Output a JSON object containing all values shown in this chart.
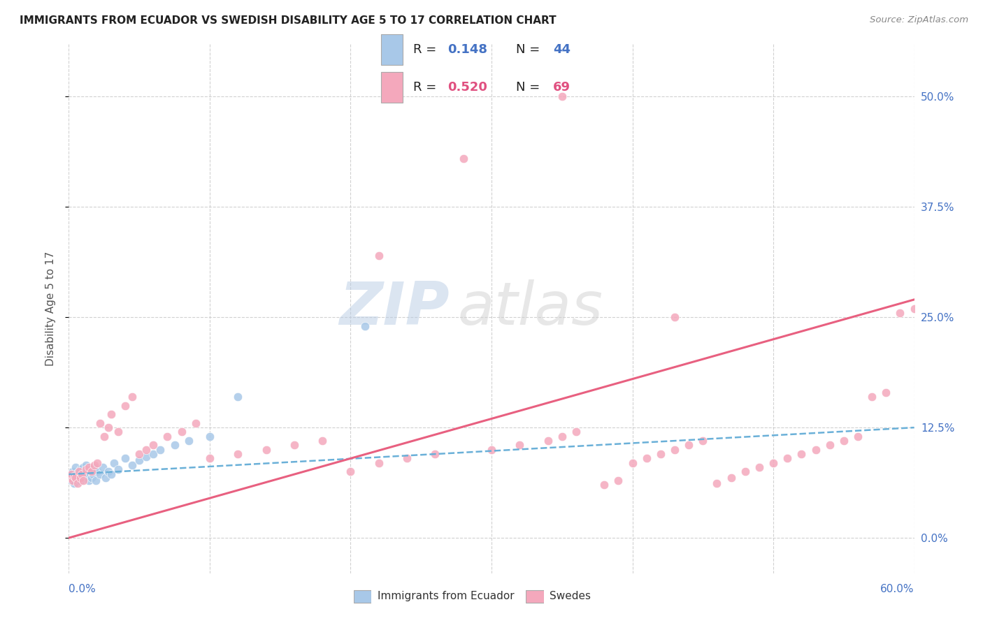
{
  "title": "IMMIGRANTS FROM ECUADOR VS SWEDISH DISABILITY AGE 5 TO 17 CORRELATION CHART",
  "source": "Source: ZipAtlas.com",
  "ylabel": "Disability Age 5 to 17",
  "xlim": [
    0.0,
    0.6
  ],
  "ylim": [
    -0.04,
    0.56
  ],
  "xlabel_vals": [
    0.0,
    0.6
  ],
  "xlabel_labels": [
    "0.0%",
    "60.0%"
  ],
  "ylabel_vals": [
    0.0,
    0.125,
    0.25,
    0.375,
    0.5
  ],
  "ylabel_labels": [
    "0.0%",
    "12.5%",
    "25.0%",
    "37.5%",
    "50.0%"
  ],
  "legend_R1": "R = ",
  "legend_V1": "0.148",
  "legend_N1_label": "N = ",
  "legend_N1": "44",
  "legend_R2": "R = ",
  "legend_V2": "0.520",
  "legend_N2_label": "N = ",
  "legend_N2": "69",
  "legend_label1": "Immigrants from Ecuador",
  "legend_label2": "Swedes",
  "color_blue": "#a8c8e8",
  "color_pink": "#f4a8bc",
  "color_blue_text": "#4472c4",
  "color_pink_text": "#e05080",
  "trendline_blue_color": "#6ab0d8",
  "trendline_pink_color": "#e86080",
  "background_color": "#ffffff",
  "grid_color": "#cccccc",
  "watermark_zip": "ZIP",
  "watermark_atlas": "atlas",
  "ecuador_x": [
    0.001,
    0.002,
    0.002,
    0.003,
    0.003,
    0.004,
    0.004,
    0.005,
    0.005,
    0.006,
    0.007,
    0.008,
    0.008,
    0.009,
    0.01,
    0.01,
    0.011,
    0.012,
    0.013,
    0.014,
    0.015,
    0.016,
    0.017,
    0.018,
    0.019,
    0.02,
    0.022,
    0.024,
    0.026,
    0.028,
    0.03,
    0.032,
    0.035,
    0.04,
    0.045,
    0.05,
    0.055,
    0.06,
    0.065,
    0.075,
    0.085,
    0.1,
    0.12,
    0.21
  ],
  "ecuador_y": [
    0.068,
    0.072,
    0.065,
    0.07,
    0.075,
    0.068,
    0.062,
    0.072,
    0.08,
    0.074,
    0.068,
    0.078,
    0.065,
    0.072,
    0.08,
    0.068,
    0.075,
    0.082,
    0.072,
    0.065,
    0.078,
    0.068,
    0.072,
    0.08,
    0.065,
    0.075,
    0.072,
    0.08,
    0.068,
    0.075,
    0.072,
    0.085,
    0.078,
    0.09,
    0.082,
    0.088,
    0.092,
    0.095,
    0.1,
    0.105,
    0.11,
    0.115,
    0.16,
    0.24
  ],
  "swedes_x": [
    0.001,
    0.002,
    0.003,
    0.004,
    0.005,
    0.006,
    0.007,
    0.008,
    0.009,
    0.01,
    0.012,
    0.014,
    0.016,
    0.018,
    0.02,
    0.022,
    0.025,
    0.028,
    0.03,
    0.035,
    0.04,
    0.045,
    0.05,
    0.055,
    0.06,
    0.07,
    0.08,
    0.09,
    0.1,
    0.12,
    0.14,
    0.16,
    0.18,
    0.2,
    0.22,
    0.24,
    0.26,
    0.28,
    0.3,
    0.32,
    0.34,
    0.35,
    0.36,
    0.38,
    0.39,
    0.4,
    0.41,
    0.42,
    0.43,
    0.44,
    0.45,
    0.46,
    0.47,
    0.48,
    0.49,
    0.5,
    0.51,
    0.52,
    0.53,
    0.54,
    0.55,
    0.56,
    0.57,
    0.58,
    0.59,
    0.35,
    0.22,
    0.43,
    0.6
  ],
  "swedes_y": [
    0.068,
    0.072,
    0.065,
    0.07,
    0.068,
    0.062,
    0.075,
    0.068,
    0.072,
    0.065,
    0.078,
    0.08,
    0.075,
    0.082,
    0.085,
    0.13,
    0.115,
    0.125,
    0.14,
    0.12,
    0.15,
    0.16,
    0.095,
    0.1,
    0.105,
    0.115,
    0.12,
    0.13,
    0.09,
    0.095,
    0.1,
    0.105,
    0.11,
    0.075,
    0.085,
    0.09,
    0.095,
    0.43,
    0.1,
    0.105,
    0.11,
    0.115,
    0.12,
    0.06,
    0.065,
    0.085,
    0.09,
    0.095,
    0.1,
    0.105,
    0.11,
    0.062,
    0.068,
    0.075,
    0.08,
    0.085,
    0.09,
    0.095,
    0.1,
    0.105,
    0.11,
    0.115,
    0.16,
    0.165,
    0.255,
    0.5,
    0.32,
    0.25,
    0.26
  ]
}
